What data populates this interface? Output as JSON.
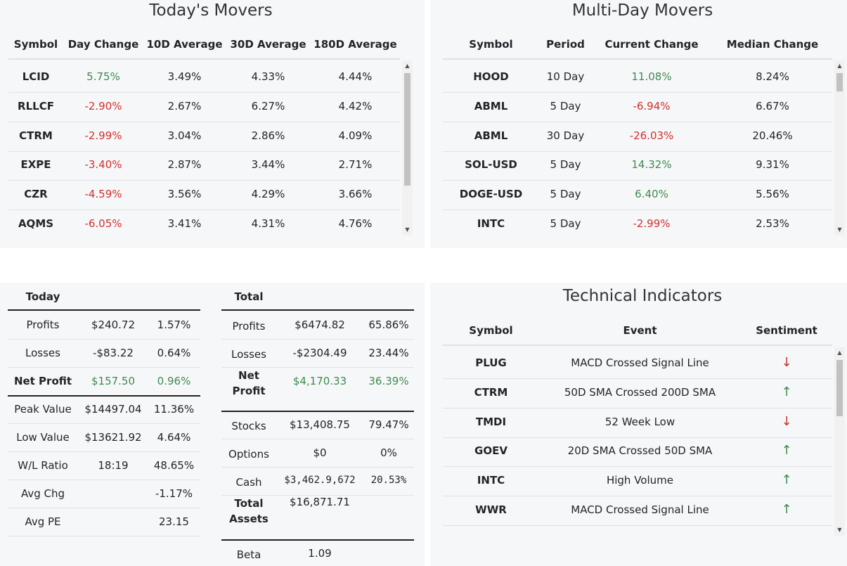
{
  "todays_movers": {
    "title": "Today's Movers",
    "headers": [
      "Symbol",
      "Day Change",
      "10D Average",
      "30D Average",
      "180D Average"
    ],
    "rows": [
      {
        "symbol": "LCID",
        "day_change": "5.75%",
        "dir": "up",
        "avg10": "3.49%",
        "avg30": "4.33%",
        "avg180": "4.44%"
      },
      {
        "symbol": "RLLCF",
        "day_change": "-2.90%",
        "dir": "down",
        "avg10": "2.67%",
        "avg30": "6.27%",
        "avg180": "4.42%"
      },
      {
        "symbol": "CTRM",
        "day_change": "-2.99%",
        "dir": "down",
        "avg10": "3.04%",
        "avg30": "2.86%",
        "avg180": "4.09%"
      },
      {
        "symbol": "EXPE",
        "day_change": "-3.40%",
        "dir": "down",
        "avg10": "2.87%",
        "avg30": "3.44%",
        "avg180": "2.71%"
      },
      {
        "symbol": "CZR",
        "day_change": "-4.59%",
        "dir": "down",
        "avg10": "3.56%",
        "avg30": "4.29%",
        "avg180": "3.66%"
      },
      {
        "symbol": "AQMS",
        "day_change": "-6.05%",
        "dir": "down",
        "avg10": "3.41%",
        "avg30": "4.31%",
        "avg180": "4.76%"
      }
    ]
  },
  "multi_day_movers": {
    "title": "Multi-Day Movers",
    "headers": [
      "Symbol",
      "Period",
      "Current Change",
      "Median Change"
    ],
    "rows": [
      {
        "symbol": "HOOD",
        "period": "10 Day",
        "current": "11.08%",
        "dir": "up",
        "median": "8.24%"
      },
      {
        "symbol": "ABML",
        "period": "5 Day",
        "current": "-6.94%",
        "dir": "down",
        "median": "6.67%"
      },
      {
        "symbol": "ABML",
        "period": "30 Day",
        "current": "-26.03%",
        "dir": "down",
        "median": "20.46%"
      },
      {
        "symbol": "SOL-USD",
        "period": "5 Day",
        "current": "14.32%",
        "dir": "up",
        "median": "9.31%"
      },
      {
        "symbol": "DOGE-USD",
        "period": "5 Day",
        "current": "6.40%",
        "dir": "up",
        "median": "5.56%"
      },
      {
        "symbol": "INTC",
        "period": "5 Day",
        "current": "-2.99%",
        "dir": "down",
        "median": "2.53%"
      }
    ]
  },
  "today_summary": {
    "header": "Today",
    "rows": [
      {
        "label": "Profits",
        "value": "$240.72",
        "pct": "1.57%"
      },
      {
        "label": "Losses",
        "value": "-$83.22",
        "pct": "0.64%"
      },
      {
        "label": "Net Profit",
        "value": "$157.50",
        "pct": "0.96%"
      },
      {
        "label": "Peak Value",
        "value": "$14497.04",
        "pct": "11.36%"
      },
      {
        "label": "Low Value",
        "value": "$13621.92",
        "pct": "4.64%"
      },
      {
        "label": "W/L Ratio",
        "value": "18:19",
        "pct": "48.65%"
      },
      {
        "label": "Avg Chg",
        "value": "",
        "pct": "-1.17%"
      },
      {
        "label": "Avg PE",
        "value": "",
        "pct": "23.15"
      }
    ]
  },
  "total_summary": {
    "header": "Total",
    "rows": [
      {
        "label": "Profits",
        "value": "$6474.82",
        "pct": "65.86%"
      },
      {
        "label": "Losses",
        "value": "-$2304.49",
        "pct": "23.44%"
      },
      {
        "label": "Net Profit",
        "value": "$4,170.33",
        "pct": "36.39%"
      },
      {
        "label": "Stocks",
        "value": "$13,408.75",
        "pct": "79.47%"
      },
      {
        "label": "Options",
        "value": "$0",
        "pct": "0%"
      },
      {
        "label": "Cash",
        "value": "$3,462.9,672",
        "pct": "20.53%"
      },
      {
        "label": "Total Assets",
        "value": "$16,871.71",
        "pct": ""
      },
      {
        "label": "Beta",
        "value": "1.09",
        "pct": ""
      }
    ]
  },
  "technical_indicators": {
    "title": "Technical Indicators",
    "headers": [
      "Symbol",
      "Event",
      "Sentiment"
    ],
    "rows": [
      {
        "symbol": "PLUG",
        "event": "MACD Crossed Signal Line",
        "arrow": "↓",
        "dir": "down"
      },
      {
        "symbol": "CTRM",
        "event": "50D SMA Crossed 200D SMA",
        "arrow": "↑",
        "dir": "up"
      },
      {
        "symbol": "TMDI",
        "event": "52 Week Low",
        "arrow": "↓",
        "dir": "down"
      },
      {
        "symbol": "GOEV",
        "event": "20D SMA Crossed 50D SMA",
        "arrow": "↑",
        "dir": "up"
      },
      {
        "symbol": "INTC",
        "event": "High Volume",
        "arrow": "↑",
        "dir": "up"
      },
      {
        "symbol": "WWR",
        "event": "MACD Crossed Signal Line",
        "arrow": "↑",
        "dir": "up"
      }
    ]
  },
  "colors": {
    "positive": "#3d8b4d",
    "negative": "#d0312d",
    "panel_bg": "#f6f7f9"
  }
}
